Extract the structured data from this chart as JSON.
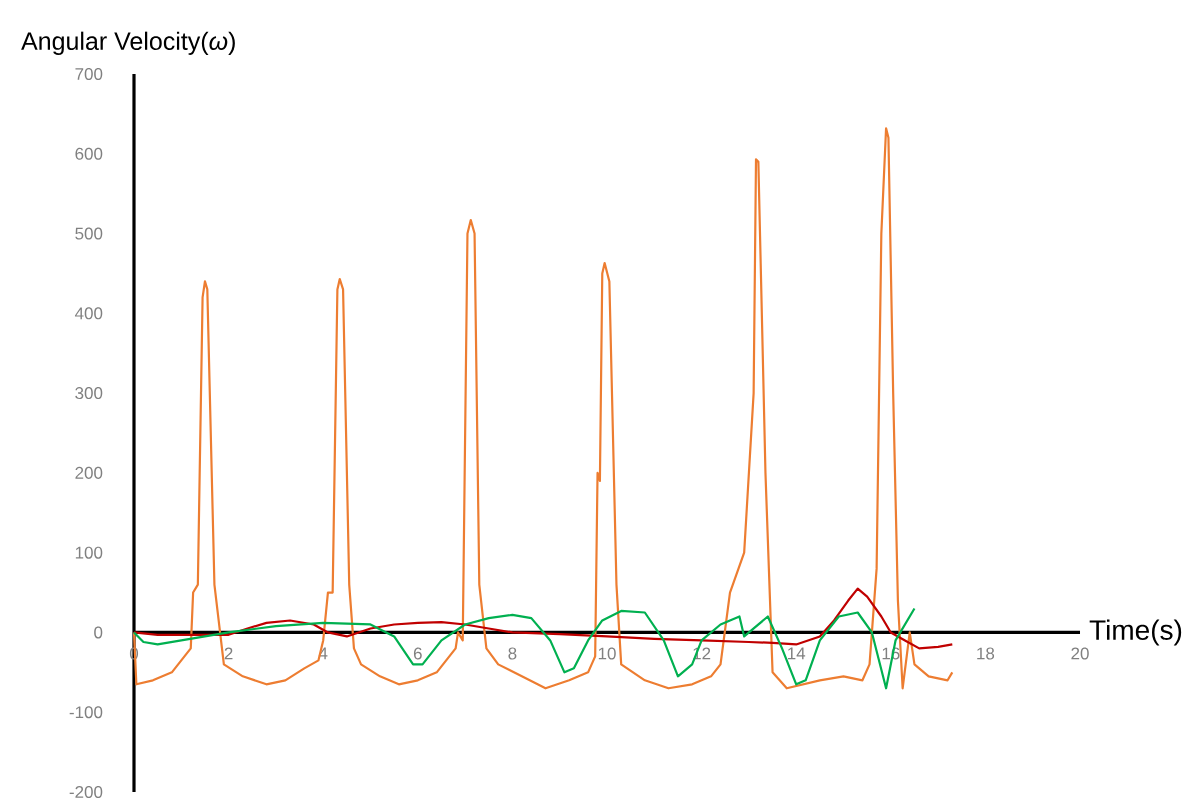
{
  "chart_data": {
    "type": "line",
    "xlabel": "Time(s)",
    "ylabel": "Angular Velocity(*ω*)",
    "xlim": [
      0,
      20
    ],
    "ylim": [
      -200,
      700
    ],
    "xticks": [
      0,
      2,
      4,
      6,
      8,
      10,
      12,
      14,
      16,
      18,
      20
    ],
    "yticks": [
      -200,
      -100,
      0,
      100,
      200,
      300,
      400,
      500,
      600,
      700
    ],
    "grid": false,
    "legend": false,
    "marker": "none",
    "line_style": "solid",
    "series": [
      {
        "color": "#ed7d31",
        "x": [
          0,
          0.05,
          0.4,
          0.8,
          1.0,
          1.2,
          1.25,
          1.35,
          1.45,
          1.5,
          1.55,
          1.7,
          1.8,
          1.9,
          2.3,
          2.8,
          3.2,
          3.6,
          3.9,
          4.0,
          4.1,
          4.2,
          4.3,
          4.35,
          4.42,
          4.55,
          4.65,
          4.8,
          5.2,
          5.6,
          6.0,
          6.4,
          6.6,
          6.8,
          6.85,
          6.95,
          7.05,
          7.12,
          7.2,
          7.3,
          7.45,
          7.7,
          8.2,
          8.7,
          9.2,
          9.6,
          9.75,
          9.8,
          9.85,
          9.9,
          9.95,
          10.05,
          10.2,
          10.3,
          10.8,
          11.3,
          11.8,
          12.2,
          12.4,
          12.6,
          12.9,
          13.1,
          13.15,
          13.2,
          13.35,
          13.5,
          13.8,
          14.5,
          15.0,
          15.4,
          15.55,
          15.7,
          15.8,
          15.9,
          15.95,
          16.05,
          16.15,
          16.25,
          16.4,
          16.5,
          16.8,
          17.2,
          17.3
        ],
        "values": [
          0,
          -65,
          -60,
          -50,
          -35,
          -20,
          50,
          60,
          420,
          440,
          430,
          60,
          10,
          -40,
          -55,
          -65,
          -60,
          -45,
          -35,
          -10,
          50,
          50,
          430,
          443,
          430,
          60,
          -20,
          -40,
          -55,
          -65,
          -60,
          -50,
          -35,
          -20,
          0,
          -10,
          500,
          517,
          500,
          60,
          -20,
          -40,
          -55,
          -70,
          -60,
          -50,
          -30,
          200,
          190,
          450,
          463,
          440,
          60,
          -40,
          -60,
          -70,
          -65,
          -55,
          -40,
          50,
          100,
          300,
          593,
          590,
          200,
          -50,
          -70,
          -60,
          -55,
          -60,
          -40,
          80,
          500,
          632,
          620,
          300,
          40,
          -70,
          0,
          -40,
          -55,
          -60,
          -50
        ]
      },
      {
        "color": "#c00000",
        "x": [
          0,
          0.5,
          1,
          1.5,
          2.0,
          2.4,
          2.8,
          3.3,
          3.8,
          4.1,
          4.5,
          5.0,
          5.5,
          6.0,
          6.5,
          7.0,
          7.5,
          8.0,
          9.0,
          10,
          11,
          12,
          13,
          13.5,
          14,
          14.5,
          14.8,
          15.1,
          15.3,
          15.5,
          15.8,
          16.0,
          16.3,
          16.6,
          17.0,
          17.3
        ],
        "values": [
          0,
          -3,
          -3,
          -3,
          -3,
          5,
          12,
          15,
          10,
          0,
          -5,
          5,
          10,
          12,
          13,
          10,
          5,
          0,
          -2,
          -5,
          -8,
          -10,
          -12,
          -13,
          -15,
          -5,
          15,
          40,
          55,
          45,
          20,
          0,
          -10,
          -20,
          -18,
          -15
        ]
      },
      {
        "color": "#00b050",
        "x": [
          0,
          0.2,
          0.5,
          1.0,
          1.5,
          2.0,
          3.0,
          4.0,
          5.0,
          5.5,
          5.9,
          6.1,
          6.5,
          7.0,
          7.5,
          8.0,
          8.4,
          8.8,
          9.1,
          9.3,
          9.6,
          9.9,
          10.3,
          10.8,
          11.2,
          11.5,
          11.8,
          12.0,
          12.4,
          12.8,
          12.9,
          13.4,
          13.7,
          14.0,
          14.2,
          14.5,
          14.9,
          15.3,
          15.6,
          15.9,
          16.1,
          16.5
        ],
        "values": [
          0,
          -12,
          -15,
          -10,
          -5,
          0,
          8,
          12,
          10,
          -5,
          -40,
          -40,
          -10,
          10,
          18,
          22,
          18,
          -10,
          -50,
          -45,
          -10,
          15,
          27,
          25,
          -10,
          -55,
          -40,
          -10,
          10,
          20,
          -5,
          20,
          -20,
          -65,
          -60,
          -10,
          20,
          25,
          0,
          -70,
          -10,
          30
        ]
      }
    ]
  }
}
